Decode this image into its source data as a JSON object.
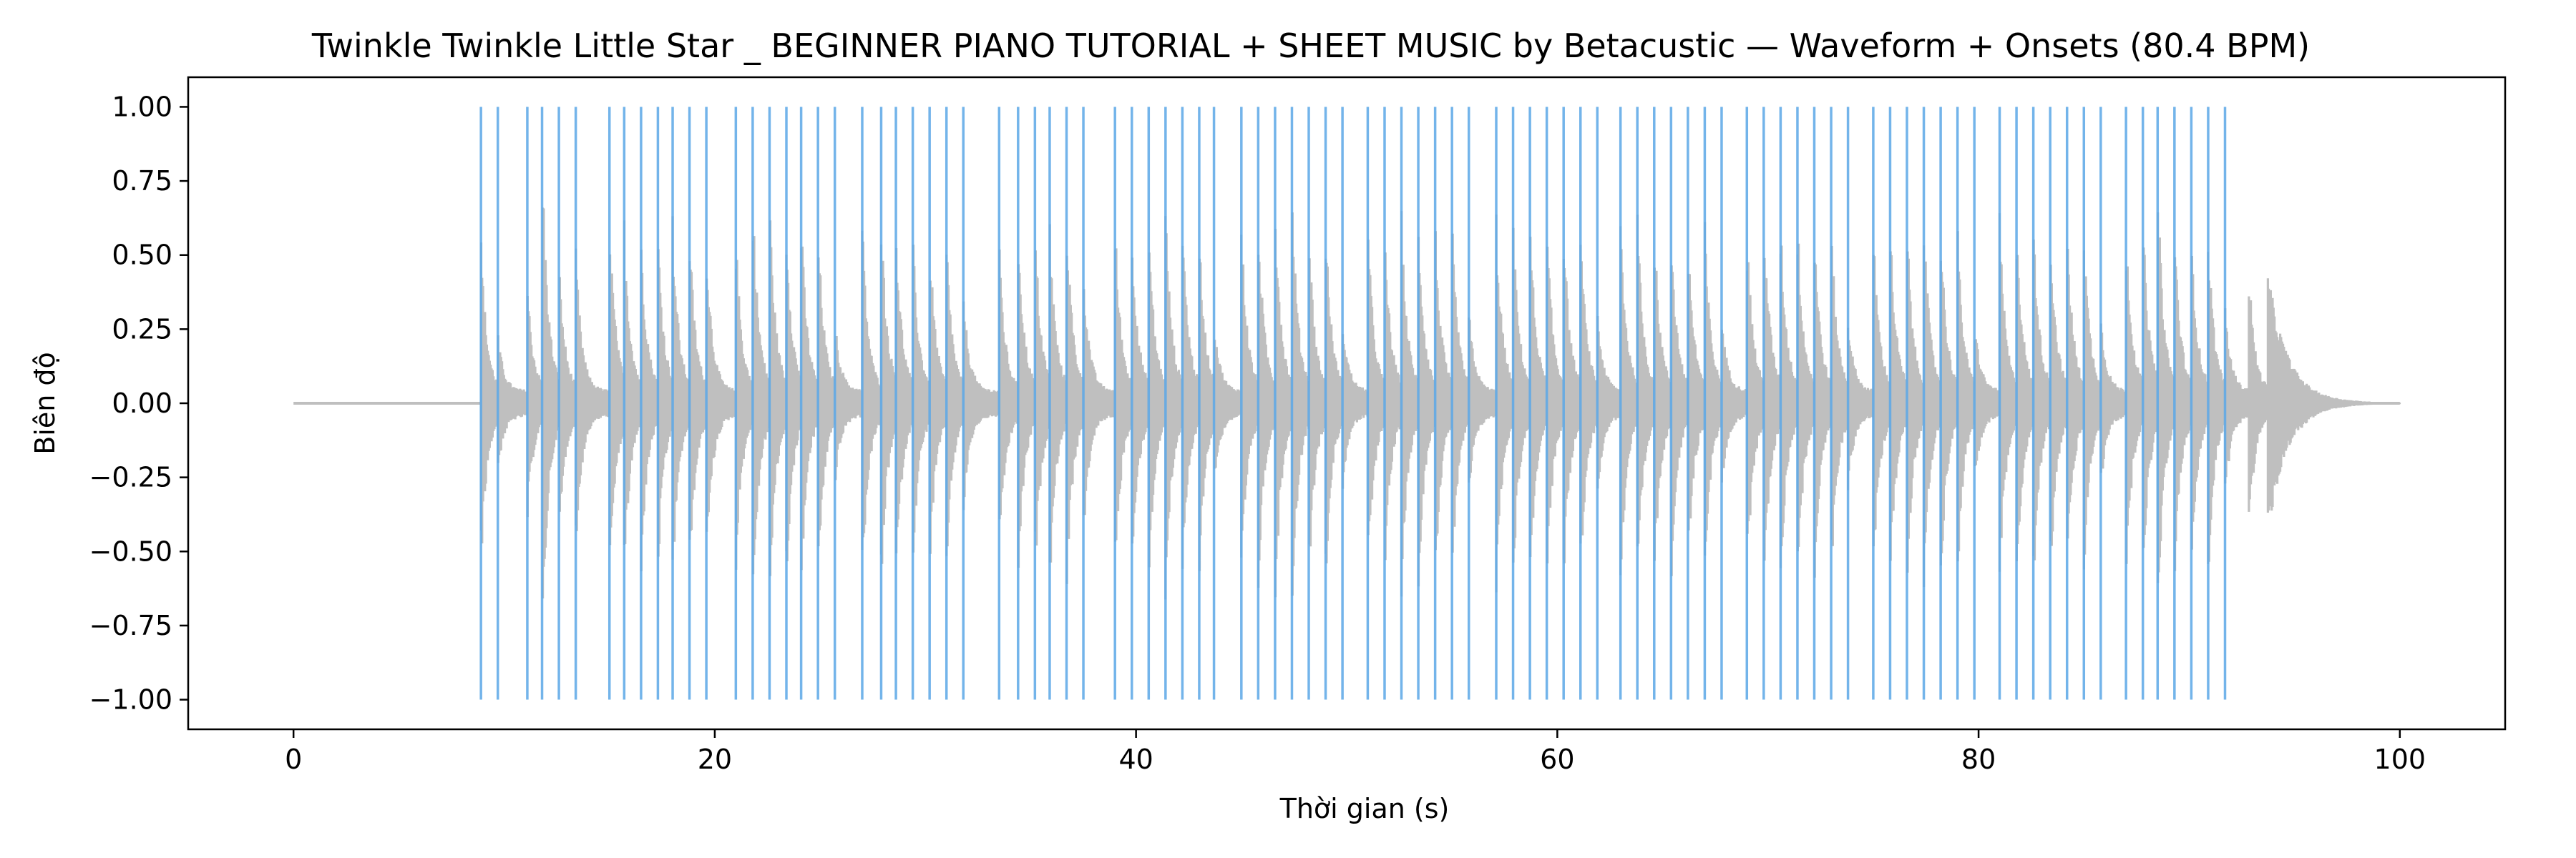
{
  "chart_data": {
    "type": "line",
    "title": "Twinkle Twinkle Little Star _ BEGINNER PIANO TUTORIAL + SHEET MUSIC by Betacustic — Waveform + Onsets (80.4 BPM)",
    "xlabel": "Thời gian (s)",
    "ylabel": "Biên độ",
    "xlim": [
      -5,
      105
    ],
    "ylim": [
      -1.1,
      1.1
    ],
    "x_ticks": [
      0,
      20,
      40,
      60,
      80,
      100
    ],
    "y_ticks": [
      -1.0,
      -0.75,
      -0.5,
      -0.25,
      0.0,
      0.25,
      0.5,
      0.75,
      1.0
    ],
    "x_tick_labels": [
      "0",
      "20",
      "40",
      "60",
      "80",
      "100"
    ],
    "y_tick_labels": [
      "−1.00",
      "−0.75",
      "−0.50",
      "−0.25",
      "0.00",
      "0.25",
      "0.50",
      "0.75",
      "1.00"
    ],
    "grid": false,
    "series": [
      {
        "kind": "waveform",
        "color": "#bfbfbf",
        "x_range": [
          0,
          100
        ],
        "note_peaks": [
          {
            "t": 8.9,
            "a": 0.53
          },
          {
            "t": 9.7,
            "a": 0.2
          },
          {
            "t": 11.1,
            "a": 0.38
          },
          {
            "t": 11.8,
            "a": 0.85
          },
          {
            "t": 12.6,
            "a": 0.46
          },
          {
            "t": 13.4,
            "a": 0.5
          },
          {
            "t": 15.0,
            "a": 0.64
          },
          {
            "t": 15.7,
            "a": 0.6
          },
          {
            "t": 16.5,
            "a": 0.56
          },
          {
            "t": 17.3,
            "a": 0.57
          },
          {
            "t": 18.0,
            "a": 0.6
          },
          {
            "t": 18.8,
            "a": 0.58
          },
          {
            "t": 19.6,
            "a": 0.55
          },
          {
            "t": 21.0,
            "a": 0.55
          },
          {
            "t": 21.8,
            "a": 0.7
          },
          {
            "t": 22.6,
            "a": 0.68
          },
          {
            "t": 23.4,
            "a": 0.6
          },
          {
            "t": 24.1,
            "a": 0.62
          },
          {
            "t": 24.9,
            "a": 0.6
          },
          {
            "t": 25.7,
            "a": 0.25
          },
          {
            "t": 27.0,
            "a": 0.6
          },
          {
            "t": 27.9,
            "a": 0.63
          },
          {
            "t": 28.6,
            "a": 0.6
          },
          {
            "t": 29.4,
            "a": 0.55
          },
          {
            "t": 30.2,
            "a": 0.56
          },
          {
            "t": 31.0,
            "a": 0.54
          },
          {
            "t": 31.8,
            "a": 0.35
          },
          {
            "t": 33.5,
            "a": 0.52
          },
          {
            "t": 34.4,
            "a": 0.6
          },
          {
            "t": 35.2,
            "a": 0.6
          },
          {
            "t": 35.9,
            "a": 0.6
          },
          {
            "t": 36.7,
            "a": 0.65
          },
          {
            "t": 37.5,
            "a": 0.45
          },
          {
            "t": 39.0,
            "a": 0.6
          },
          {
            "t": 39.8,
            "a": 0.6
          },
          {
            "t": 40.6,
            "a": 0.6
          },
          {
            "t": 41.4,
            "a": 0.65
          },
          {
            "t": 42.2,
            "a": 0.62
          },
          {
            "t": 43.0,
            "a": 0.56
          },
          {
            "t": 43.7,
            "a": 0.26
          },
          {
            "t": 45.0,
            "a": 0.6
          },
          {
            "t": 45.8,
            "a": 0.62
          },
          {
            "t": 46.6,
            "a": 0.7
          },
          {
            "t": 47.4,
            "a": 0.72
          },
          {
            "t": 48.2,
            "a": 0.6
          },
          {
            "t": 49.0,
            "a": 0.6
          },
          {
            "t": 49.8,
            "a": 0.26
          },
          {
            "t": 51.0,
            "a": 0.6
          },
          {
            "t": 51.8,
            "a": 0.58
          },
          {
            "t": 52.6,
            "a": 0.62
          },
          {
            "t": 53.4,
            "a": 0.62
          },
          {
            "t": 54.2,
            "a": 0.6
          },
          {
            "t": 55.0,
            "a": 0.6
          },
          {
            "t": 55.8,
            "a": 0.28
          },
          {
            "t": 57.1,
            "a": 0.62
          },
          {
            "t": 57.9,
            "a": 0.6
          },
          {
            "t": 58.7,
            "a": 0.62
          },
          {
            "t": 59.5,
            "a": 0.6
          },
          {
            "t": 60.3,
            "a": 0.6
          },
          {
            "t": 61.1,
            "a": 0.58
          },
          {
            "t": 61.9,
            "a": 0.28
          },
          {
            "t": 63.0,
            "a": 0.62
          },
          {
            "t": 63.8,
            "a": 0.62
          },
          {
            "t": 64.6,
            "a": 0.6
          },
          {
            "t": 65.4,
            "a": 0.6
          },
          {
            "t": 66.2,
            "a": 0.58
          },
          {
            "t": 67.0,
            "a": 0.58
          },
          {
            "t": 67.8,
            "a": 0.26
          },
          {
            "t": 69.0,
            "a": 0.6
          },
          {
            "t": 69.8,
            "a": 0.68
          },
          {
            "t": 70.6,
            "a": 0.6
          },
          {
            "t": 71.4,
            "a": 0.62
          },
          {
            "t": 72.2,
            "a": 0.6
          },
          {
            "t": 73.0,
            "a": 0.6
          },
          {
            "t": 73.8,
            "a": 0.26
          },
          {
            "t": 75.0,
            "a": 0.6
          },
          {
            "t": 75.8,
            "a": 0.6
          },
          {
            "t": 76.6,
            "a": 0.6
          },
          {
            "t": 77.4,
            "a": 0.62
          },
          {
            "t": 78.2,
            "a": 0.6
          },
          {
            "t": 79.0,
            "a": 0.58
          },
          {
            "t": 79.8,
            "a": 0.26
          },
          {
            "t": 81.0,
            "a": 0.6
          },
          {
            "t": 81.8,
            "a": 0.62
          },
          {
            "t": 82.6,
            "a": 0.62
          },
          {
            "t": 83.4,
            "a": 0.6
          },
          {
            "t": 84.2,
            "a": 0.6
          },
          {
            "t": 85.0,
            "a": 0.58
          },
          {
            "t": 85.8,
            "a": 0.26
          },
          {
            "t": 87.0,
            "a": 0.6
          },
          {
            "t": 87.8,
            "a": 0.62
          },
          {
            "t": 88.5,
            "a": 0.75
          },
          {
            "t": 89.3,
            "a": 0.6
          },
          {
            "t": 90.1,
            "a": 0.58
          },
          {
            "t": 90.9,
            "a": 0.58
          },
          {
            "t": 91.7,
            "a": 0.3
          },
          {
            "t": 92.8,
            "a": 0.48
          },
          {
            "t": 93.7,
            "a": 0.45
          }
        ]
      },
      {
        "kind": "onsets",
        "color": "#5aa7e6",
        "y_range": [
          -1,
          1
        ],
        "values": [
          8.9,
          9.7,
          11.1,
          11.8,
          12.6,
          13.4,
          15.0,
          15.7,
          16.5,
          17.3,
          18.0,
          18.8,
          19.6,
          21.0,
          21.8,
          22.6,
          23.4,
          24.1,
          24.9,
          25.7,
          27.0,
          27.9,
          28.6,
          29.4,
          30.2,
          31.0,
          31.8,
          33.5,
          34.4,
          35.2,
          35.9,
          36.7,
          37.5,
          39.0,
          39.8,
          40.6,
          41.4,
          42.2,
          43.0,
          43.7,
          45.0,
          45.8,
          46.6,
          47.4,
          48.2,
          49.0,
          49.8,
          51.0,
          51.8,
          52.6,
          53.4,
          54.2,
          55.0,
          55.8,
          57.1,
          57.9,
          58.7,
          59.5,
          60.3,
          61.1,
          61.9,
          63.0,
          63.8,
          64.6,
          65.4,
          66.2,
          67.0,
          67.8,
          69.0,
          69.8,
          70.6,
          71.4,
          72.2,
          73.0,
          73.8,
          75.0,
          75.8,
          76.6,
          77.4,
          78.2,
          79.0,
          79.8,
          81.0,
          81.8,
          82.6,
          83.4,
          84.2,
          85.0,
          85.8,
          87.0,
          87.8,
          88.5,
          89.3,
          90.1,
          90.9,
          91.7
        ]
      }
    ]
  }
}
